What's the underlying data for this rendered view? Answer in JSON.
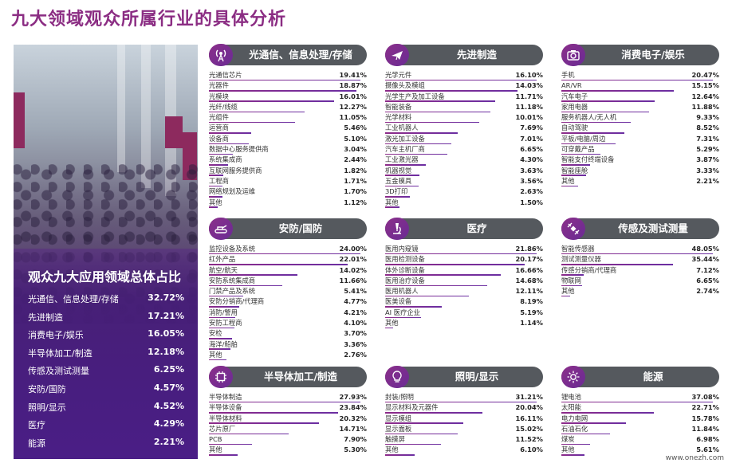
{
  "page_title": "九大领域观众所属行业的具体分析",
  "chart_data": [
    {
      "type": "table",
      "title": "观众九大应用领域总体占比",
      "unit": "%",
      "categories": [
        "光通信、信息处理/存储",
        "先进制造",
        "消费电子/娱乐",
        "半导体加工/制造",
        "传感及测试测量",
        "安防/国防",
        "照明/显示",
        "医疗",
        "能源"
      ],
      "values": [
        32.72,
        17.21,
        16.05,
        12.18,
        6.25,
        4.57,
        4.52,
        4.29,
        2.21
      ],
      "labels": [
        "32.72%",
        "17.21%",
        "16.05%",
        "12.18%",
        "6.25%",
        "4.57%",
        "4.52%",
        "4.29%",
        "2.21%"
      ]
    },
    {
      "type": "bar",
      "title": "光通信、信息处理/存储",
      "icon": "antenna-icon",
      "categories": [
        "光通信芯片",
        "光器件",
        "光模块",
        "光纤/线缆",
        "光组件",
        "运营商",
        "设备商",
        "数据中心服务提供商",
        "系统集成商",
        "互联网服务提供商",
        "工程商",
        "网络规划及运维",
        "其他"
      ],
      "values": [
        19.41,
        18.87,
        16.01,
        12.27,
        11.05,
        5.46,
        5.1,
        3.04,
        2.44,
        1.82,
        1.71,
        1.7,
        1.12
      ],
      "labels": [
        "19.41%",
        "18.87%",
        "16.01%",
        "12.27%",
        "11.05%",
        "5.46%",
        "5.10%",
        "3.04%",
        "2.44%",
        "1.82%",
        "1.71%",
        "1.70%",
        "1.12%"
      ]
    },
    {
      "type": "bar",
      "title": "先进制造",
      "icon": "plane-icon",
      "categories": [
        "光学元件",
        "摄像头及模组",
        "光学生产及加工设备",
        "智能装备",
        "光学材料",
        "工业机器人",
        "激光加工设备",
        "汽车主机厂商",
        "工业激光器",
        "机器视觉",
        "五金模具",
        "3D打印",
        "其他"
      ],
      "values": [
        16.1,
        14.03,
        11.71,
        11.18,
        10.01,
        7.69,
        7.01,
        6.65,
        4.3,
        3.63,
        3.56,
        2.63,
        1.5
      ],
      "labels": [
        "16.10%",
        "14.03%",
        "11.71%",
        "11.18%",
        "10.01%",
        "7.69%",
        "7.01%",
        "6.65%",
        "4.30%",
        "3.63%",
        "3.56%",
        "2.63%",
        "1.50%"
      ]
    },
    {
      "type": "bar",
      "title": "消费电子/娱乐",
      "icon": "camera-icon",
      "categories": [
        "手机",
        "AR/VR",
        "汽车电子",
        "家用电器",
        "服务机器人/无人机",
        "自动驾驶",
        "平板/电脑/周边",
        "可穿戴产品",
        "智能支付终端设备",
        "智能座舱",
        "其他"
      ],
      "values": [
        20.47,
        15.15,
        12.64,
        11.88,
        9.33,
        8.52,
        7.31,
        5.29,
        3.87,
        3.33,
        2.21
      ],
      "labels": [
        "20.47%",
        "15.15%",
        "12.64%",
        "11.88%",
        "9.33%",
        "8.52%",
        "7.31%",
        "5.29%",
        "3.87%",
        "3.33%",
        "2.21%"
      ]
    },
    {
      "type": "bar",
      "title": "安防/国防",
      "icon": "tank-icon",
      "categories": [
        "监控设备及系统",
        "红外产品",
        "航空/航天",
        "安防系统集成商",
        "门禁产品及系统",
        "安防分销商/代理商",
        "消防/警用",
        "安防工程商",
        "安检",
        "海洋/船舶",
        "其他"
      ],
      "values": [
        24.0,
        22.01,
        14.02,
        11.66,
        5.41,
        4.77,
        4.21,
        4.1,
        3.7,
        3.36,
        2.76
      ],
      "labels": [
        "24.00%",
        "22.01%",
        "14.02%",
        "11.66%",
        "5.41%",
        "4.77%",
        "4.21%",
        "4.10%",
        "3.70%",
        "3.36%",
        "2.76%"
      ]
    },
    {
      "type": "bar",
      "title": "医疗",
      "icon": "microscope-icon",
      "categories": [
        "医用内窥镜",
        "医用检测设备",
        "体外诊断设备",
        "医用治疗设备",
        "医用机器人",
        "医美设备",
        "AI 医疗企业",
        "其他"
      ],
      "values": [
        21.86,
        20.17,
        16.66,
        14.68,
        12.11,
        8.19,
        5.19,
        1.14
      ],
      "labels": [
        "21.86%",
        "20.17%",
        "16.66%",
        "14.68%",
        "12.11%",
        "8.19%",
        "5.19%",
        "1.14%"
      ]
    },
    {
      "type": "bar",
      "title": "传感及测试测量",
      "icon": "satellite-icon",
      "categories": [
        "智能传感器",
        "测试测量仪器",
        "传感分销商/代理商",
        "物联网",
        "其他"
      ],
      "values": [
        48.05,
        35.44,
        7.12,
        6.65,
        2.74
      ],
      "labels": [
        "48.05%",
        "35.44%",
        "7.12%",
        "6.65%",
        "2.74%"
      ]
    },
    {
      "type": "bar",
      "title": "半导体加工/制造",
      "icon": "chip-icon",
      "categories": [
        "半导体制造",
        "半导体设备",
        "半导体材料",
        "芯片原厂",
        "PCB",
        "其他"
      ],
      "values": [
        27.93,
        23.84,
        20.32,
        14.71,
        7.9,
        5.3
      ],
      "labels": [
        "27.93%",
        "23.84%",
        "20.32%",
        "14.71%",
        "7.90%",
        "5.30%"
      ]
    },
    {
      "type": "bar",
      "title": "照明/显示",
      "icon": "bulb-icon",
      "categories": [
        "封装/照明",
        "显示材料及元器件",
        "显示模组",
        "显示面板",
        "触摸屏",
        "其他"
      ],
      "values": [
        31.21,
        20.04,
        16.11,
        15.02,
        11.52,
        6.1
      ],
      "labels": [
        "31.21%",
        "20.04%",
        "16.11%",
        "15.02%",
        "11.52%",
        "6.10%"
      ]
    },
    {
      "type": "bar",
      "title": "能源",
      "icon": "sun-icon",
      "categories": [
        "锂电池",
        "太阳能",
        "电力电网",
        "石油石化",
        "煤炭",
        "其他"
      ],
      "values": [
        37.08,
        22.71,
        15.78,
        11.84,
        6.98,
        5.61
      ],
      "labels": [
        "37.08%",
        "22.71%",
        "15.78%",
        "11.84%",
        "6.98%",
        "5.61%"
      ]
    }
  ],
  "watermark": "www.onezh.com",
  "colors": {
    "title": "#8b2d83",
    "header_bg": "#55595e",
    "bar": "#8d2b89",
    "side_panel": "#4a1e86"
  }
}
